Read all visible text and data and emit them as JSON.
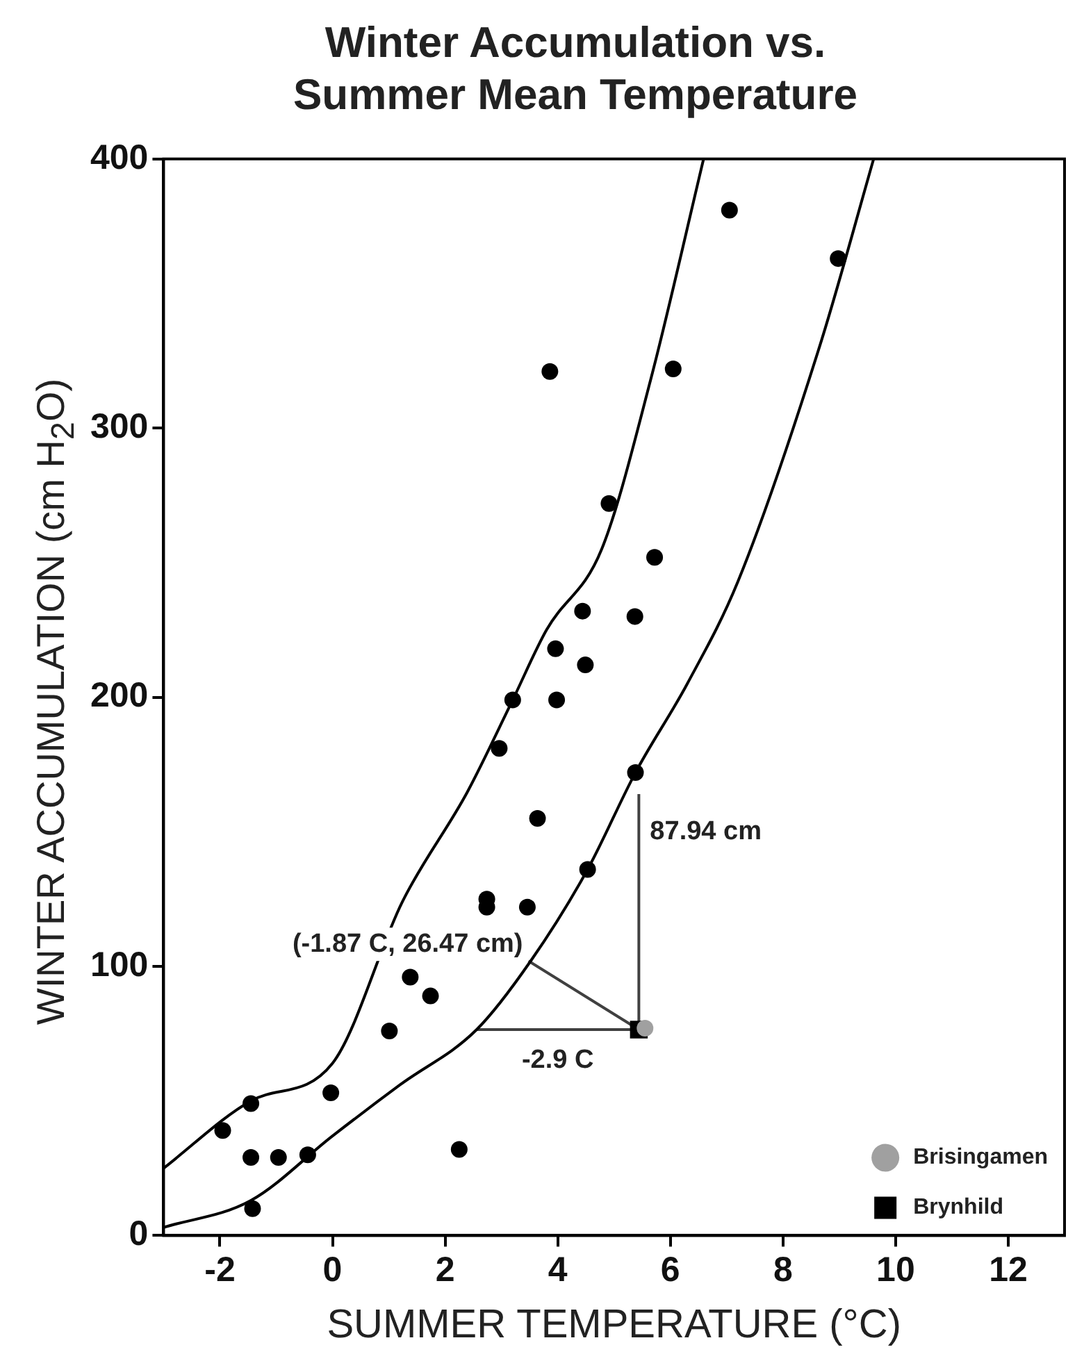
{
  "chart_data": {
    "type": "scatter",
    "title": "Winter Accumulation vs.\nSummer Mean Temperature",
    "xlabel": "SUMMER TEMPERATURE (°C)",
    "ylabel": "WINTER ACCUMULATION (cm H$_{2}$O)",
    "xlim": [
      -3,
      13
    ],
    "xticks": [
      -2,
      0,
      2,
      4,
      6,
      8,
      10,
      12
    ],
    "ylim": [
      0,
      400
    ],
    "yticks": [
      0,
      100,
      200,
      300,
      400
    ],
    "grid": false,
    "legend": "bottom right",
    "marker": "circle",
    "series": [
      {
        "type": "line",
        "color": "#000000",
        "marker": "none",
        "line_style": "solid",
        "x": [
          -3,
          -1.45,
          0,
          1.24,
          2.4,
          3.2,
          3.8,
          4.78,
          5.65,
          6.59
        ],
        "values": [
          25,
          50,
          64,
          124,
          165,
          199,
          225,
          255,
          318,
          400
        ]
      },
      {
        "type": "line",
        "color": "#000000",
        "marker": "none",
        "line_style": "solid",
        "x": [
          -3,
          -1.45,
          0,
          1.2,
          2.56,
          3.52,
          4.53,
          5.38,
          6.3,
          7.2,
          8.66,
          9.61
        ],
        "values": [
          3,
          13,
          37,
          56,
          76.5,
          102,
          136,
          172,
          205,
          243,
          331,
          400
        ]
      },
      {
        "type": "line",
        "color": "#404040",
        "marker": "none",
        "line_style": "solid",
        "x": [
          5.44,
          5.44
        ],
        "values": [
          76.5,
          164
        ]
      },
      {
        "type": "line",
        "color": "#404040",
        "marker": "none",
        "line_style": "solid",
        "x": [
          2.56,
          5.44
        ],
        "values": [
          76.5,
          76.5
        ]
      },
      {
        "type": "line",
        "color": "#404040",
        "marker": "none",
        "line_style": "solid",
        "x": [
          3.48,
          5.44
        ],
        "values": [
          102,
          76.5
        ]
      },
      {
        "color": "#000000",
        "x": [
          7.05,
          8.98,
          6.05,
          5.72,
          3.86,
          4.91,
          4.44,
          5.37,
          3.96,
          4.49,
          3.2,
          3.98,
          2.96,
          5.38,
          3.64,
          4.53,
          2.74,
          2.74,
          3.46,
          1.38,
          1.74,
          1.01,
          -0.03,
          -1.45,
          -1.95,
          -1.45,
          -0.96,
          -0.44,
          -1.42,
          2.25
        ],
        "values": [
          381,
          363,
          322,
          252,
          321,
          272,
          232,
          230,
          218,
          212,
          199,
          199,
          181,
          172,
          155,
          136,
          125,
          122,
          122,
          96,
          89,
          76,
          53,
          49,
          39,
          29,
          29,
          30,
          10,
          32
        ]
      },
      {
        "name": "Brisingamen",
        "color": "#a0a0a0",
        "x": [
          5.55
        ],
        "values": [
          77
        ]
      },
      {
        "name": "Brynhild",
        "color": "#000000",
        "marker": "square",
        "x": [
          5.44
        ],
        "values": [
          76.5
        ]
      }
    ],
    "annotations": [
      {
        "text": "87.94 cm",
        "x": 5.44,
        "y": 150
      },
      {
        "text": "-2.9 C",
        "x": 4,
        "y": 76.5
      },
      {
        "text": "(-1.87 C, 26.47 cm)",
        "x": 3.48,
        "y": 102
      }
    ]
  }
}
